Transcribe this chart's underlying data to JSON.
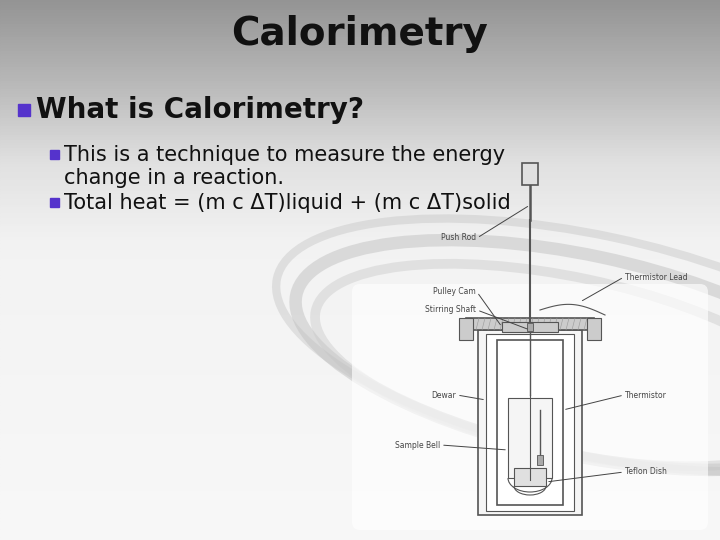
{
  "title": "Calorimetry",
  "title_fontsize": 28,
  "title_fontweight": "bold",
  "title_color": "#111111",
  "bullet1_text": "What is Calorimetry?",
  "bullet1_fontsize": 20,
  "bullet1_fontweight": "bold",
  "bullet1_color": "#111111",
  "bullet1_marker_color": "#5533cc",
  "sub_bullet1_line1": "This is a technique to measure the energy",
  "sub_bullet1_line2": "change in a reaction.",
  "sub_bullet2_text": "Total heat = (m c ΔT)liquid + (m c ΔT)solid",
  "sub_fontsize": 15,
  "sub_color": "#111111",
  "sub_marker_color": "#5533cc",
  "label_fontsize": 5.5,
  "label_color": "#444444"
}
